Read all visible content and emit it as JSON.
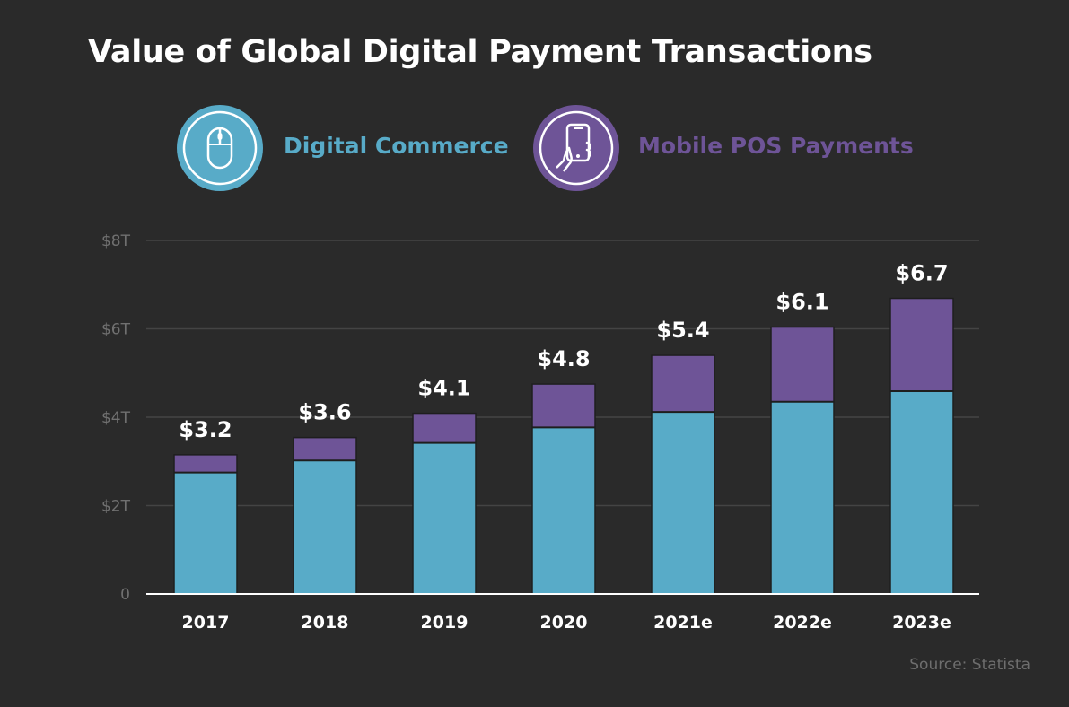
{
  "header": {
    "title": "Value of Global Digital Payment Transactions"
  },
  "legend": {
    "items": [
      {
        "label": "Digital Commerce",
        "icon": "computer-mouse-icon",
        "color": "#58abc8"
      },
      {
        "label": "Mobile POS Payments",
        "icon": "hand-holding-phone-icon",
        "color": "#6e5497"
      }
    ]
  },
  "footer": {
    "source": "Source: Statista"
  },
  "colors": {
    "background": "#2a2a2a",
    "digital_commerce": "#58abc8",
    "mobile_pos": "#6e5497",
    "gridline": "#444444",
    "axis": "#ffffff",
    "tick_label": "#707070",
    "category_label": "#ffffff",
    "total_label": "#ffffff"
  },
  "chart_data": {
    "type": "bar",
    "stacked": true,
    "title": "Value of Global Digital Payment Transactions",
    "categories": [
      "2017",
      "2018",
      "2019",
      "2020",
      "2021e",
      "2022e",
      "2023e"
    ],
    "series": [
      {
        "name": "Digital Commerce",
        "values": [
          2.75,
          3.02,
          3.42,
          3.77,
          4.12,
          4.35,
          4.59
        ]
      },
      {
        "name": "Mobile POS Payments",
        "values": [
          0.4,
          0.52,
          0.67,
          0.98,
          1.28,
          1.69,
          2.1
        ]
      }
    ],
    "totals_labels": [
      "$3.2",
      "$3.6",
      "$4.1",
      "$4.8",
      "$5.4",
      "$6.1",
      "$6.7"
    ],
    "y_ticks": [
      {
        "value": 0,
        "label": "0"
      },
      {
        "value": 2,
        "label": "$2T"
      },
      {
        "value": 4,
        "label": "$4T"
      },
      {
        "value": 6,
        "label": "$6T"
      },
      {
        "value": 8,
        "label": "$8T"
      }
    ],
    "ylim": [
      0,
      8
    ],
    "xlabel": "",
    "ylabel": "",
    "grid": true,
    "unit": "trillion USD",
    "legend_position": "top"
  }
}
